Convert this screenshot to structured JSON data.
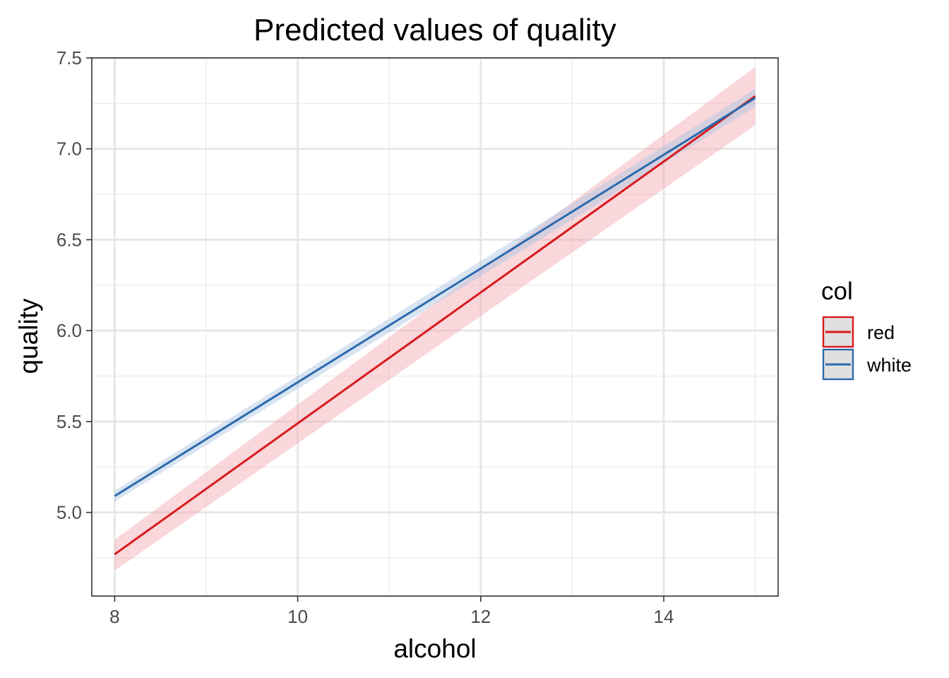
{
  "chart_data": {
    "type": "line",
    "title": "Predicted values of quality",
    "xlabel": "alcohol",
    "ylabel": "quality",
    "xlim": [
      7.75,
      15.25
    ],
    "ylim": [
      4.54,
      7.5
    ],
    "x_ticks": [
      8,
      10,
      12,
      14
    ],
    "x_tick_labels": [
      "8",
      "10",
      "12",
      "14"
    ],
    "x_minor_ticks": [
      9,
      11,
      13,
      15
    ],
    "y_ticks": [
      5.0,
      5.5,
      6.0,
      6.5,
      7.0,
      7.5
    ],
    "y_tick_labels": [
      "5.0",
      "5.5",
      "6.0",
      "6.5",
      "7.0",
      "7.5"
    ],
    "y_minor_ticks": [
      4.75,
      5.25,
      5.75,
      6.25,
      6.75,
      7.25
    ],
    "grid": true,
    "legend": {
      "title": "col",
      "position": "right"
    },
    "series": [
      {
        "name": "red",
        "color": "#d7191c",
        "band_color": "#f4a6b0",
        "x": [
          8,
          15
        ],
        "y": [
          4.77,
          7.29
        ],
        "ci_low": [
          4.68,
          7.13
        ],
        "ci_high": [
          4.85,
          7.45
        ]
      },
      {
        "name": "white",
        "color": "#2c6aac",
        "band_color": "#a9c4e2",
        "x": [
          8,
          15
        ],
        "y": [
          5.09,
          7.28
        ],
        "ci_low": [
          5.06,
          7.23
        ],
        "ci_high": [
          5.12,
          7.33
        ]
      }
    ]
  }
}
